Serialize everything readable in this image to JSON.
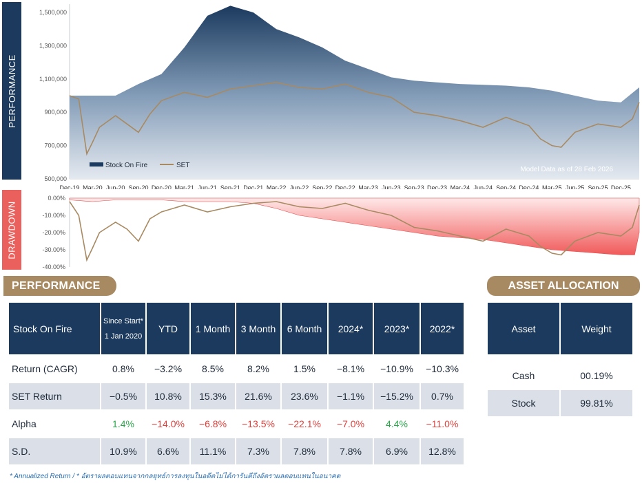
{
  "side_labels": {
    "performance": "PERFORMANCE",
    "drawdown": "DRAWDOWN"
  },
  "chart_data": [
    {
      "type": "area",
      "x_ticks": [
        "Dec-19",
        "Mar-20",
        "Jun-20",
        "Sep-20",
        "Dec-20",
        "Mar-21",
        "Jun-21",
        "Sep-21",
        "Dec-21",
        "Mar-22",
        "Jun-22",
        "Sep-22",
        "Dec-22",
        "Mar-23",
        "Jun-23",
        "Sep-23",
        "Dec-23",
        "Mar-24",
        "Jun-24",
        "Sep-24",
        "Dec-24",
        "Mar-25",
        "Jun-25",
        "Sep-25",
        "Dec-25"
      ],
      "y_ticks": [
        "500,000",
        "700,000",
        "900,000",
        "1,100,000",
        "1,300,000",
        "1,500,000"
      ],
      "ylim": [
        500000,
        1550000
      ],
      "note": "Model Data as of 28 Feb 2026",
      "legend": [
        "Stock On Fire",
        "SET"
      ],
      "series": [
        {
          "name": "Stock On Fire",
          "color": "#1b3a5e",
          "x": [
            0,
            1,
            2,
            3,
            4,
            5,
            6,
            7,
            8,
            9,
            10,
            11,
            12,
            13,
            14,
            15,
            16,
            17,
            18,
            19,
            20,
            21,
            22,
            23,
            24,
            24.8
          ],
          "values": [
            1000000,
            1000000,
            1000000,
            1070000,
            1130000,
            1290000,
            1480000,
            1540000,
            1500000,
            1400000,
            1350000,
            1290000,
            1210000,
            1160000,
            1110000,
            1090000,
            1080000,
            1070000,
            1065000,
            1060000,
            1050000,
            1030000,
            1000000,
            970000,
            960000,
            1050000
          ]
        },
        {
          "name": "SET",
          "color": "#a88a62",
          "x": [
            0,
            0.4,
            0.75,
            1,
            1.3,
            2,
            2.5,
            3,
            3.5,
            4,
            5,
            6,
            7,
            8,
            9,
            10,
            11,
            12,
            13,
            14,
            15,
            16,
            17,
            18,
            19,
            20,
            20.5,
            21,
            21.4,
            22,
            23,
            24,
            24.5,
            24.8
          ],
          "values": [
            1000000,
            980000,
            650000,
            720000,
            810000,
            880000,
            830000,
            780000,
            890000,
            970000,
            1020000,
            990000,
            1040000,
            1060000,
            1080000,
            1050000,
            1040000,
            1070000,
            1020000,
            990000,
            900000,
            880000,
            850000,
            810000,
            870000,
            820000,
            740000,
            700000,
            690000,
            780000,
            830000,
            810000,
            860000,
            960000
          ]
        }
      ]
    },
    {
      "type": "area",
      "y_ticks": [
        "0.00%",
        "-10.00%",
        "-20.00%",
        "-30.00%",
        "-40.00%"
      ],
      "ylim": [
        -40,
        0
      ],
      "series": [
        {
          "name": "Stock On Fire",
          "color": "#f26a6a",
          "x": [
            0,
            1,
            2,
            3,
            4,
            5,
            6,
            7,
            8,
            9,
            10,
            11,
            12,
            13,
            14,
            15,
            16,
            17,
            18,
            19,
            20,
            21,
            22,
            23,
            24,
            24.6,
            24.8
          ],
          "values": [
            -1,
            -2,
            -1,
            -1,
            -1,
            -2,
            -2,
            -2,
            -3,
            -6,
            -10,
            -12,
            -14,
            -16,
            -18,
            -20,
            -22,
            -23,
            -24,
            -26,
            -28,
            -30,
            -31,
            -32,
            -33,
            -33,
            -20
          ]
        },
        {
          "name": "SET",
          "color": "#a88a62",
          "x": [
            0,
            0.4,
            0.75,
            1,
            1.3,
            2,
            2.5,
            3,
            3.5,
            4,
            5,
            6,
            7,
            8,
            9,
            10,
            11,
            12,
            13,
            14,
            15,
            16,
            17,
            18,
            19,
            20,
            20.5,
            21,
            21.4,
            22,
            23,
            24,
            24.5,
            24.8
          ],
          "values": [
            -2,
            -10,
            -36,
            -29,
            -20,
            -14,
            -18,
            -25,
            -12,
            -8,
            -4,
            -8,
            -5,
            -3,
            -2,
            -5,
            -6,
            -3,
            -7,
            -10,
            -17,
            -19,
            -22,
            -25,
            -18,
            -22,
            -28,
            -32,
            -33,
            -25,
            -20,
            -22,
            -17,
            -4
          ]
        }
      ]
    }
  ],
  "perf_title": "PERFORMANCE",
  "alloc_title": "ASSET ALLOCATION",
  "perf_table": {
    "headers": [
      "Stock On Fire",
      "Since Start*",
      "1 Jan 2020",
      "YTD",
      "1 Month",
      "3 Month",
      "6 Month",
      "2024*",
      "2023*",
      "2022*"
    ],
    "rows": [
      {
        "label": "Return (CAGR)",
        "cells": [
          "0.8%",
          "−3.2%",
          "8.5%",
          "8.2%",
          "1.5%",
          "−8.1%",
          "−10.9%",
          "−10.3%"
        ]
      },
      {
        "label": "SET Return",
        "cells": [
          "−0.5%",
          "10.8%",
          "15.3%",
          "21.6%",
          "23.6%",
          "−1.1%",
          "−15.2%",
          "0.7%"
        ]
      },
      {
        "label": "Alpha",
        "cells": [
          "1.4%",
          "−14.0%",
          "−6.8%",
          "−13.5%",
          "−22.1%",
          "−7.0%",
          "4.4%",
          "−11.0%"
        ]
      },
      {
        "label": "S.D.",
        "cells": [
          "10.9%",
          "6.6%",
          "11.1%",
          "7.3%",
          "7.8%",
          "7.8%",
          "6.9%",
          "12.8%"
        ]
      }
    ]
  },
  "alloc_table": {
    "headers": [
      "Asset",
      "Weight"
    ],
    "rows": [
      {
        "asset": "Cash",
        "weight": "00.19%"
      },
      {
        "asset": "Stock",
        "weight": "99.81%"
      }
    ]
  },
  "footnote": "* Annualized Return / * อัตราผลตอบแทนจากกลยุทธ์การลงทุนในอดีตไม่ได้การันตีถึงอัตราผลตอบแทนในอนาคต",
  "colors": {
    "navy": "#1b3a5e",
    "gold": "#a88a62",
    "red": "#e9605d",
    "row_alt": "#dbe0e8",
    "pos": "#2aa84a",
    "neg": "#e0413c"
  }
}
